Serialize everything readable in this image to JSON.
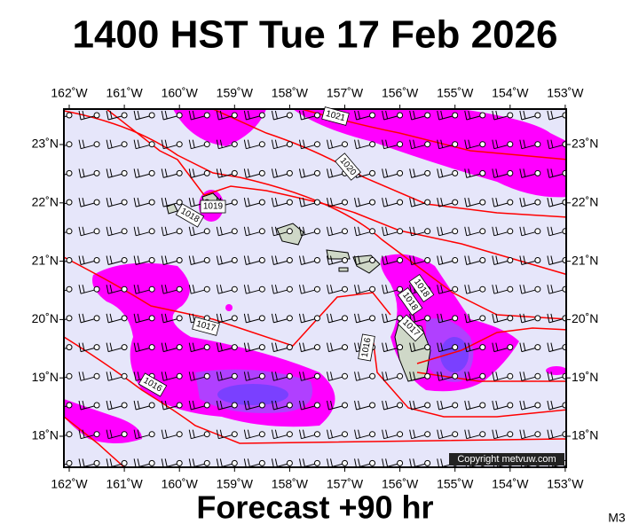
{
  "title": "1400 HST Tue 17 Feb 2026",
  "lon_labels": [
    "162˚W",
    "161˚W",
    "160˚W",
    "159˚W",
    "158˚W",
    "157˚W",
    "156˚W",
    "155˚W",
    "154˚W",
    "153˚W"
  ],
  "lat_labels": [
    "23˚N",
    "22˚N",
    "21˚N",
    "20˚N",
    "19˚N",
    "18˚N"
  ],
  "isobar_labels": [
    "1021",
    "1020",
    "1019",
    "1018",
    "1018",
    "1018",
    "1017",
    "1017",
    "1016",
    "1016"
  ],
  "copyright": "Copyright metvuw.com",
  "footer": "Forecast +90 hr",
  "model_tag": "M3"
}
